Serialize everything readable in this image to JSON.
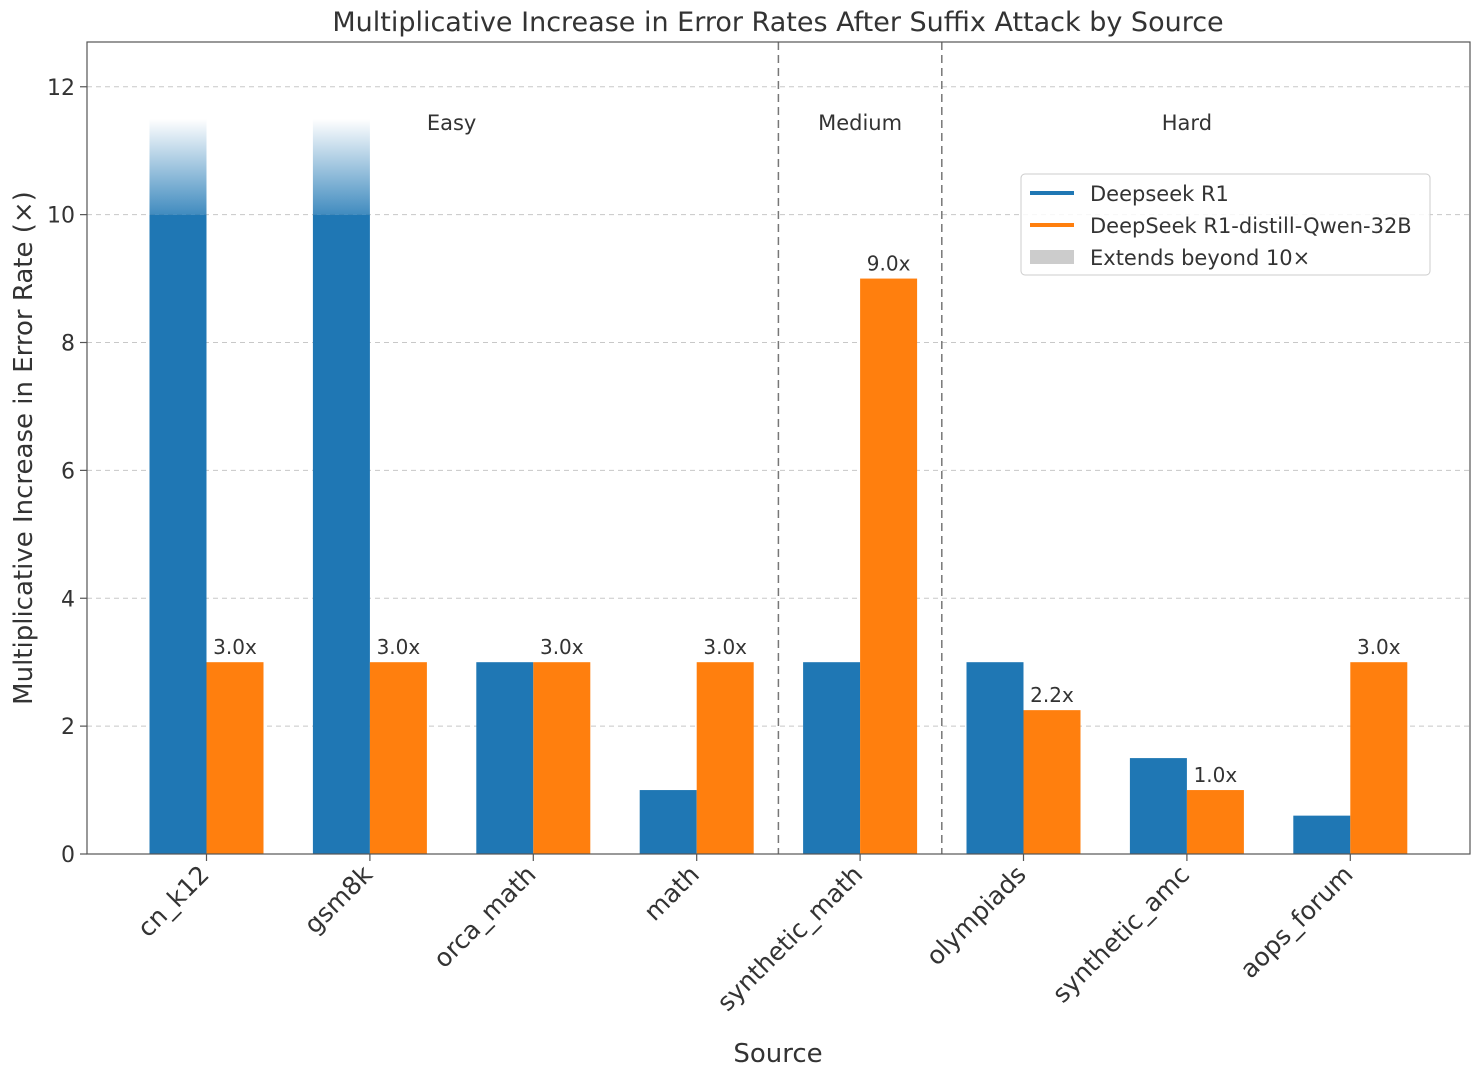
{
  "chart_data": {
    "type": "bar",
    "title": "Multiplicative Increase in Error Rates After Suffix Attack by Source",
    "xlabel": "Source",
    "ylabel": "Multiplicative Increase in Error Rate (×)",
    "ylim": [
      0,
      12.7
    ],
    "yticks": [
      0,
      2,
      4,
      6,
      8,
      10,
      12
    ],
    "grid": true,
    "categories": [
      "cn_k12",
      "gsm8k",
      "orca_math",
      "math",
      "synthetic_math",
      "olympiads",
      "synthetic_amc",
      "aops_forum"
    ],
    "series": [
      {
        "name": "Deepseek R1",
        "color": "#1f77b4",
        "values": [
          11.5,
          11.5,
          3.0,
          1.0,
          3.0,
          3.0,
          1.5,
          0.6
        ],
        "capped_at": 10,
        "labels": [
          "",
          "",
          "",
          "",
          "",
          "",
          "",
          ""
        ]
      },
      {
        "name": "DeepSeek R1-distill-Qwen-32B",
        "color": "#ff7f0e",
        "values": [
          3.0,
          3.0,
          3.0,
          3.0,
          9.0,
          2.25,
          1.0,
          3.0
        ],
        "labels": [
          "3.0x",
          "3.0x",
          "3.0x",
          "3.0x",
          "9.0x",
          "2.2x",
          "1.0x",
          "3.0x"
        ]
      }
    ],
    "groups": [
      {
        "label": "Easy",
        "from": 0,
        "to": 3
      },
      {
        "label": "Medium",
        "from": 4,
        "to": 4
      },
      {
        "label": "Hard",
        "from": 5,
        "to": 7
      }
    ],
    "legend": {
      "placement": "upper-right",
      "entries": [
        {
          "label": "Deepseek R1",
          "color": "#1f77b4",
          "kind": "line"
        },
        {
          "label": "DeepSeek R1-distill-Qwen-32B",
          "color": "#ff7f0e",
          "kind": "line"
        },
        {
          "label": "Extends beyond 10×",
          "color": "#cccccc",
          "kind": "patch"
        }
      ]
    }
  }
}
